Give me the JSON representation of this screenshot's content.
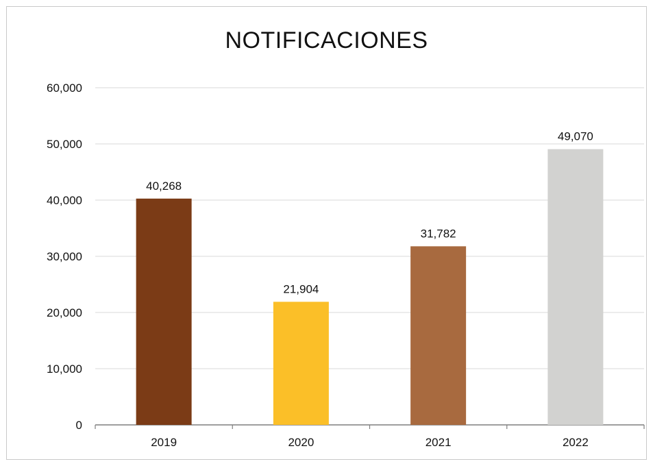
{
  "chart_data": {
    "type": "bar",
    "title": "NOTIFICACIONES",
    "categories": [
      "2019",
      "2020",
      "2021",
      "2022"
    ],
    "values": [
      40268,
      21904,
      31782,
      49070
    ],
    "value_labels": [
      "40,268",
      "21,904",
      "31,782",
      "49,070"
    ],
    "colors": [
      "#7b3b16",
      "#fbbf28",
      "#a86a3f",
      "#d2d2d0"
    ],
    "ylim": [
      0,
      60000
    ],
    "yticks": [
      0,
      10000,
      20000,
      30000,
      40000,
      50000,
      60000
    ],
    "ytick_labels": [
      "0",
      "10,000",
      "20,000",
      "30,000",
      "40,000",
      "50,000",
      "60,000"
    ],
    "xlabel": "",
    "ylabel": "",
    "grid": true,
    "gridline_color": "#d9d9d9",
    "axis_color": "#7f7f7f"
  }
}
